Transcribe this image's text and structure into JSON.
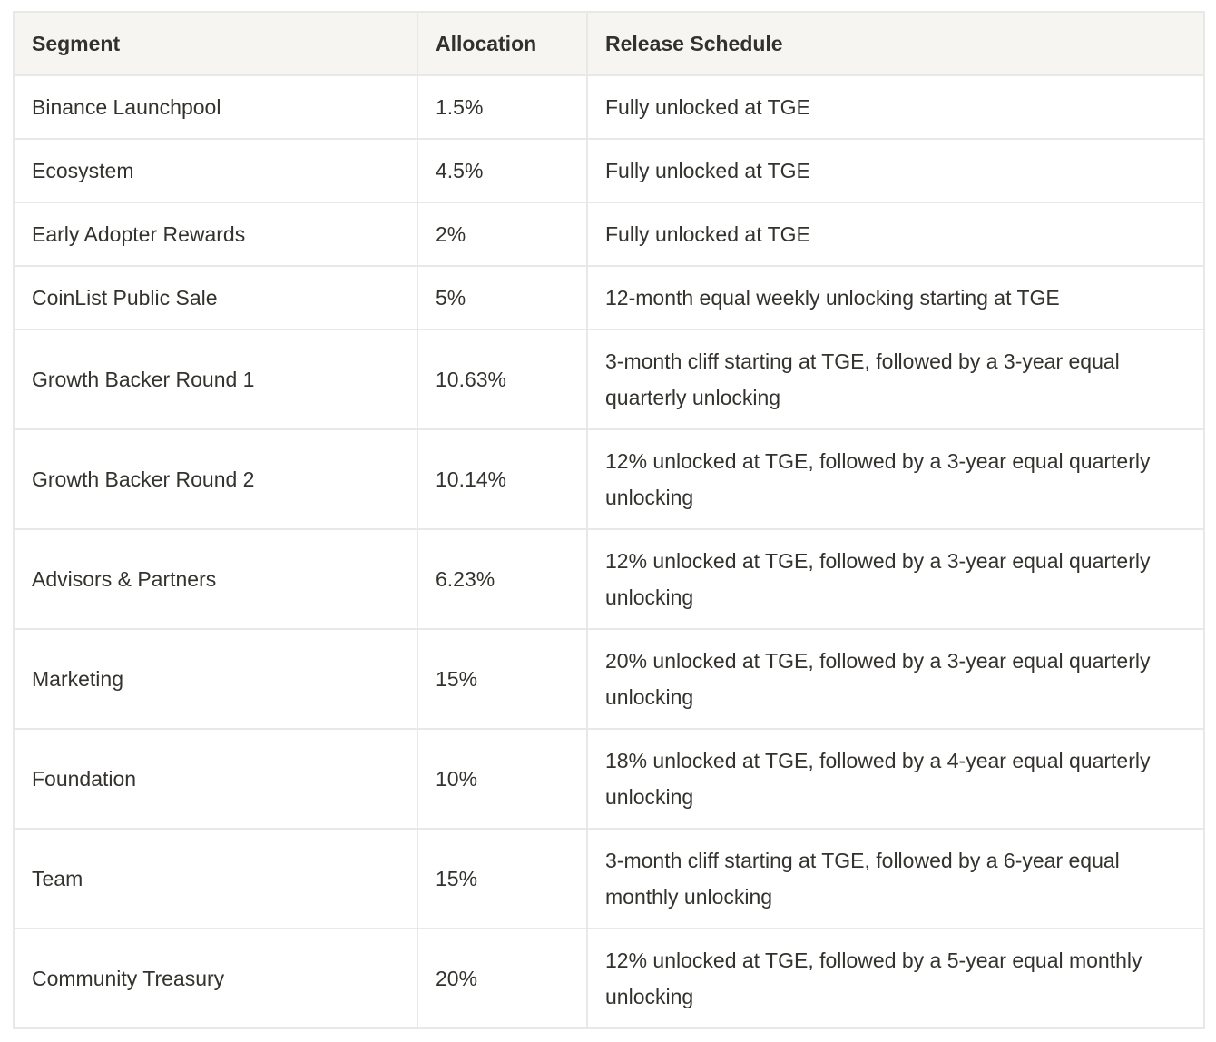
{
  "colors": {
    "header_background": "#f6f5f1",
    "border": "#e8e8e6",
    "text": "#34322d",
    "row_background": "#ffffff"
  },
  "table": {
    "headers": {
      "segment": "Segment",
      "allocation": "Allocation",
      "release": "Release Schedule"
    },
    "rows": [
      {
        "segment": "Binance Launchpool",
        "allocation": "1.5%",
        "release": "Fully unlocked at TGE"
      },
      {
        "segment": "Ecosystem",
        "allocation": "4.5%",
        "release": "Fully unlocked at TGE"
      },
      {
        "segment": "Early Adopter Rewards",
        "allocation": "2%",
        "release": "Fully unlocked at TGE"
      },
      {
        "segment": "CoinList Public Sale",
        "allocation": "5%",
        "release": "12-month equal weekly unlocking starting at TGE"
      },
      {
        "segment": "Growth Backer Round 1",
        "allocation": "10.63%",
        "release": "3-month cliff starting at TGE, followed by a 3-year equal quarterly unlocking"
      },
      {
        "segment": "Growth Backer Round 2",
        "allocation": "10.14%",
        "release": "12% unlocked at TGE, followed by a 3-year equal quarterly unlocking"
      },
      {
        "segment": "Advisors & Partners",
        "allocation": "6.23%",
        "release": "12% unlocked at TGE, followed by a 3-year equal quarterly unlocking"
      },
      {
        "segment": "Marketing",
        "allocation": "15%",
        "release": "20% unlocked at TGE, followed by a 3-year equal quarterly unlocking"
      },
      {
        "segment": "Foundation",
        "allocation": "10%",
        "release": "18% unlocked at TGE, followed by a 4-year equal quarterly unlocking"
      },
      {
        "segment": "Team",
        "allocation": "15%",
        "release": "3-month cliff starting at TGE, followed by a 6-year equal monthly unlocking"
      },
      {
        "segment": "Community Treasury",
        "allocation": "20%",
        "release": "12% unlocked at TGE, followed by a 5-year equal monthly unlocking"
      }
    ]
  }
}
